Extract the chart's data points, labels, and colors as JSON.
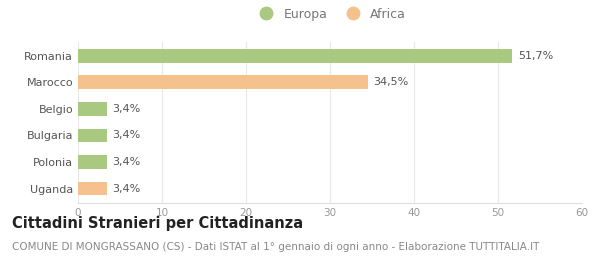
{
  "categories": [
    "Uganda",
    "Polonia",
    "Bulgaria",
    "Belgio",
    "Marocco",
    "Romania"
  ],
  "values": [
    3.4,
    3.4,
    3.4,
    3.4,
    34.5,
    51.7
  ],
  "colors": [
    "#f5c18c",
    "#a8c97f",
    "#a8c97f",
    "#a8c97f",
    "#f5c18c",
    "#a8c97f"
  ],
  "labels": [
    "3,4%",
    "3,4%",
    "3,4%",
    "3,4%",
    "34,5%",
    "51,7%"
  ],
  "legend_europa_color": "#a8c97f",
  "legend_africa_color": "#f5c18c",
  "xlim": [
    0,
    60
  ],
  "xticks": [
    0,
    10,
    20,
    30,
    40,
    50,
    60
  ],
  "background_color": "#ffffff",
  "title": "Cittadini Stranieri per Cittadinanza",
  "subtitle": "COMUNE DI MONGRASSANO (CS) - Dati ISTAT al 1° gennaio di ogni anno - Elaborazione TUTTITALIA.IT",
  "title_fontsize": 10.5,
  "subtitle_fontsize": 7.5,
  "bar_height": 0.52,
  "label_fontsize": 8,
  "tick_fontsize": 7.5,
  "ytick_fontsize": 8
}
